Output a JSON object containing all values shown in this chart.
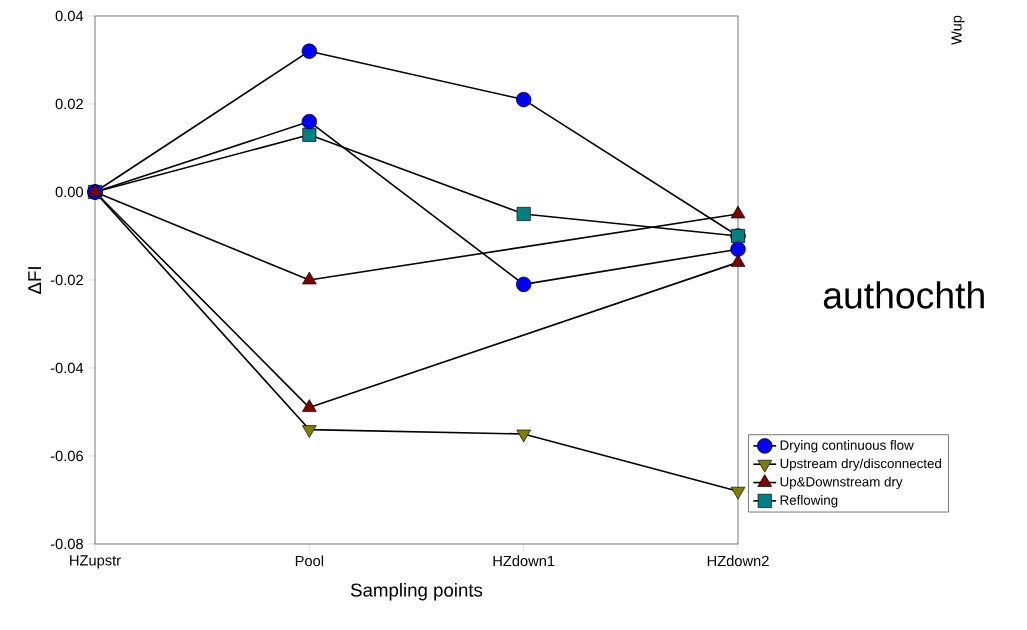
{
  "chart_data": {
    "type": "line",
    "xlabel": "Sampling points",
    "ylabel": "ΔFI",
    "categories": [
      "HZupstr",
      "Pool",
      "HZdown1",
      "HZdown2"
    ],
    "ylim": [
      -0.08,
      0.04
    ],
    "yticks": [
      -0.08,
      -0.06,
      -0.04,
      -0.02,
      {
        "value": 0,
        "label": "0.00"
      },
      0.02,
      0.04
    ],
    "grid": false,
    "legend": "right",
    "line_style": "solid",
    "series": [
      {
        "name": "Drying continuous flow",
        "color": "#0000ff",
        "marker": "circle",
        "values": [
          0,
          0.032,
          0.021,
          -0.01
        ]
      },
      {
        "name": "Upstream dry/disconnected",
        "color": "#808000",
        "marker": "triangle-down",
        "values": [
          0,
          -0.054,
          -0.055,
          -0.068
        ]
      },
      {
        "name": "Up&Downstream dry",
        "color": "#800000",
        "marker": "triangle",
        "values": [
          0,
          -0.02,
          null,
          -0.005
        ]
      },
      {
        "name": "Reflowing",
        "color": "#008080",
        "marker": "square",
        "values": [
          0,
          0.013,
          -0.005,
          -0.01
        ]
      },
      {
        "color": "#0000ff",
        "marker": "circle",
        "values": [
          0,
          0.016,
          -0.021,
          -0.013
        ]
      },
      {
        "color": "#800000",
        "marker": "triangle",
        "values": [
          0,
          -0.049,
          null,
          -0.016
        ]
      }
    ],
    "annotations": [
      "Wup",
      "authochth"
    ]
  }
}
